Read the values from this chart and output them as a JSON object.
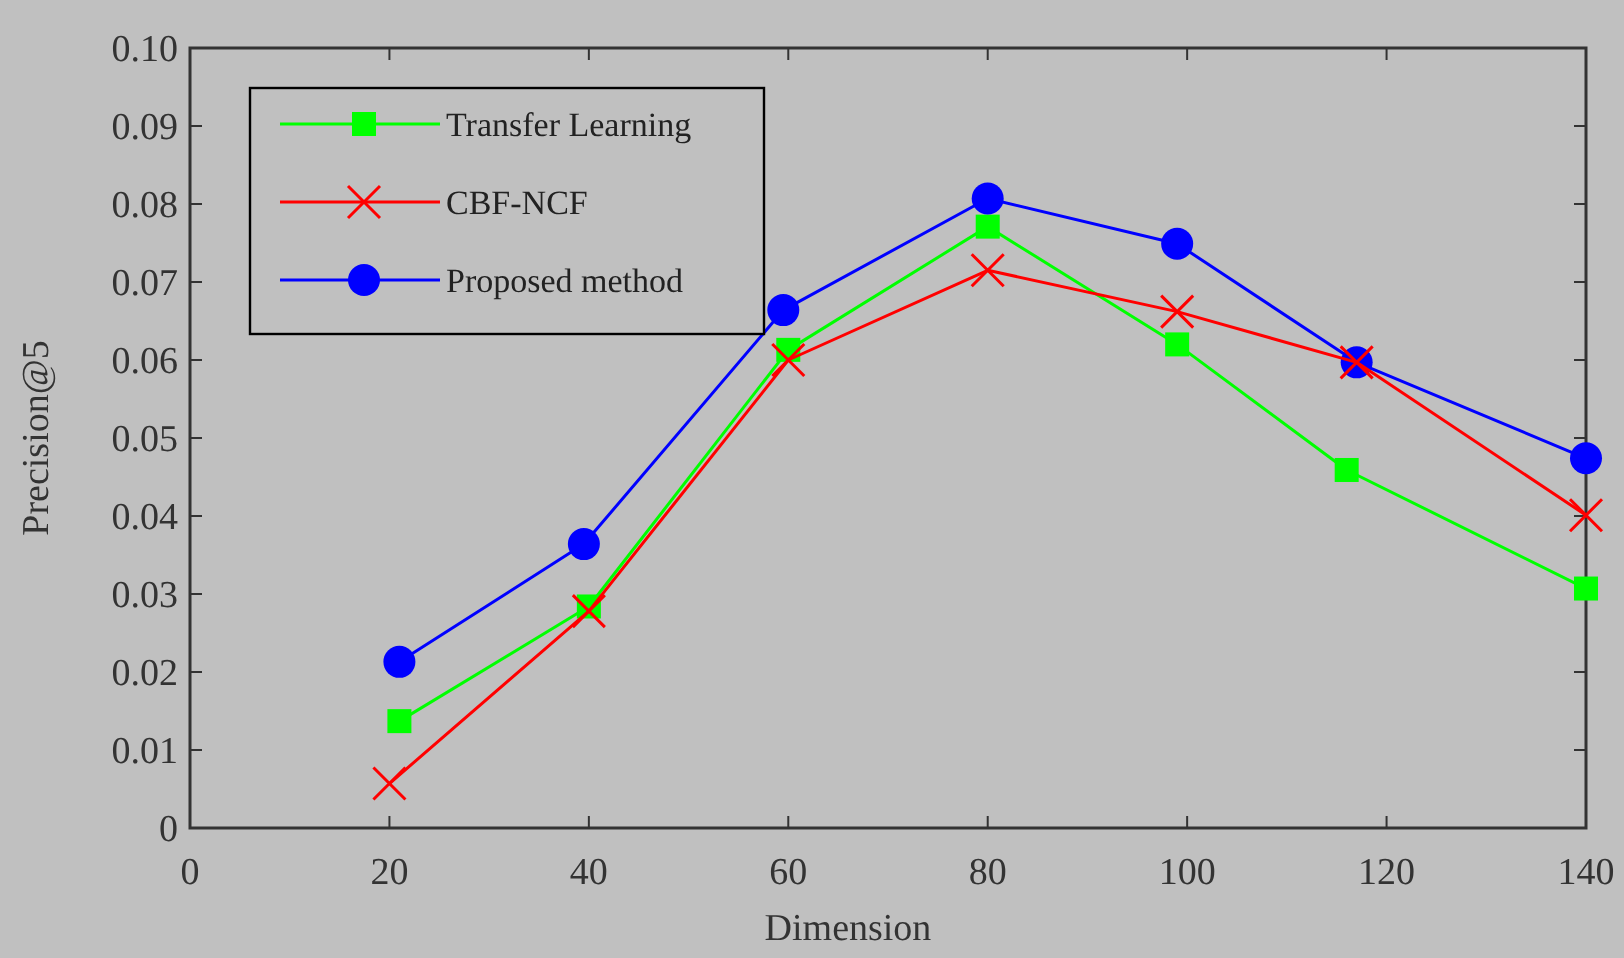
{
  "chart_data": {
    "type": "line",
    "xlabel": "Dimension",
    "ylabel": "Precision@5",
    "xlim": [
      0,
      140
    ],
    "ylim": [
      0,
      0.1
    ],
    "xticks": [
      0,
      20,
      40,
      60,
      80,
      100,
      120,
      140
    ],
    "yticks": [
      0,
      0.01,
      0.02,
      0.03,
      0.04,
      0.05,
      0.06,
      0.07,
      0.08,
      0.09,
      {
        "value": 0.1,
        "label": "0.10"
      }
    ],
    "legend": "top left",
    "series": [
      {
        "name": "Transfer Learning",
        "color": "#00ff00",
        "marker": "square",
        "x": [
          21,
          40,
          60,
          80,
          99,
          116,
          140
        ],
        "values": [
          0.0137,
          0.0284,
          0.0613,
          0.0771,
          0.062,
          0.0459,
          0.0307
        ]
      },
      {
        "name": "CBF-NCF",
        "color": "#ff0000",
        "marker": "cross",
        "x": [
          20,
          40,
          60,
          80,
          99,
          117,
          140
        ],
        "values": [
          0.0057,
          0.0278,
          0.06,
          0.0715,
          0.0662,
          0.0597,
          0.0401
        ]
      },
      {
        "name": "Proposed method",
        "color": "#0000ff",
        "marker": "circle",
        "x": [
          21,
          39.5,
          59.5,
          80,
          99,
          117,
          140
        ],
        "values": [
          0.0213,
          0.0364,
          0.0664,
          0.0807,
          0.0749,
          0.0597,
          0.0474
        ]
      }
    ]
  }
}
